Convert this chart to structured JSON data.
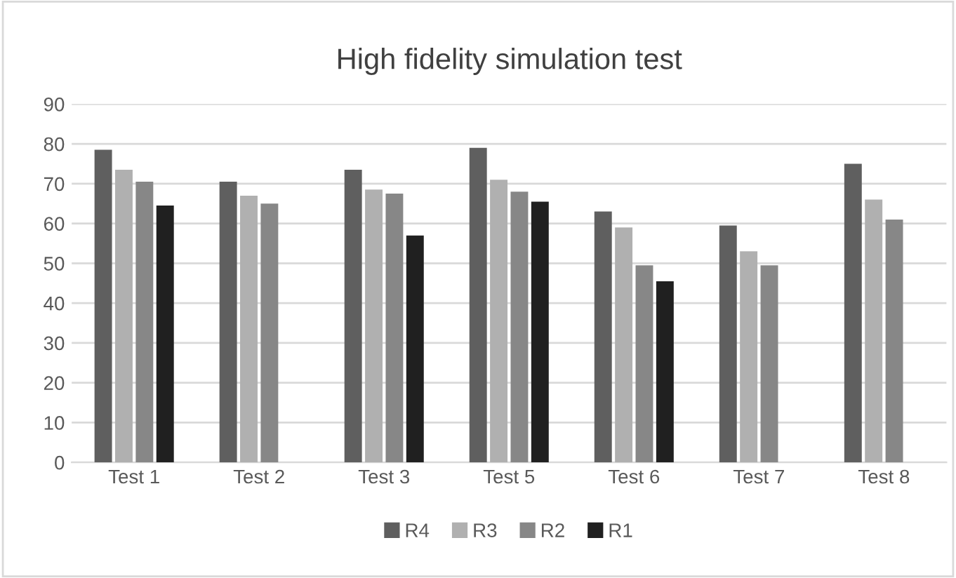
{
  "chart_data": {
    "type": "bar",
    "title": "High fidelity simulation test",
    "categories": [
      "Test 1",
      "Test 2",
      "Test 3",
      "Test 5",
      "Test 6",
      "Test 7",
      "Test 8"
    ],
    "series": [
      {
        "name": "R4",
        "color": "#5f5f5f",
        "values": [
          78.5,
          70.5,
          73.5,
          79,
          63,
          59.5,
          75
        ]
      },
      {
        "name": "R3",
        "color": "#b0b0b0",
        "values": [
          73.5,
          67,
          68.5,
          71,
          59,
          53,
          66
        ]
      },
      {
        "name": "R2",
        "color": "#878787",
        "values": [
          70.5,
          65,
          67.5,
          68,
          49.5,
          49.5,
          61
        ]
      },
      {
        "name": "R1",
        "color": "#202020",
        "values": [
          64.5,
          null,
          57,
          65.5,
          45.5,
          null,
          null
        ]
      }
    ],
    "ylim": [
      0,
      90
    ],
    "yticks": [
      0,
      10,
      20,
      30,
      40,
      50,
      60,
      70,
      80,
      90
    ],
    "grid": "y",
    "legend": "bottom"
  }
}
